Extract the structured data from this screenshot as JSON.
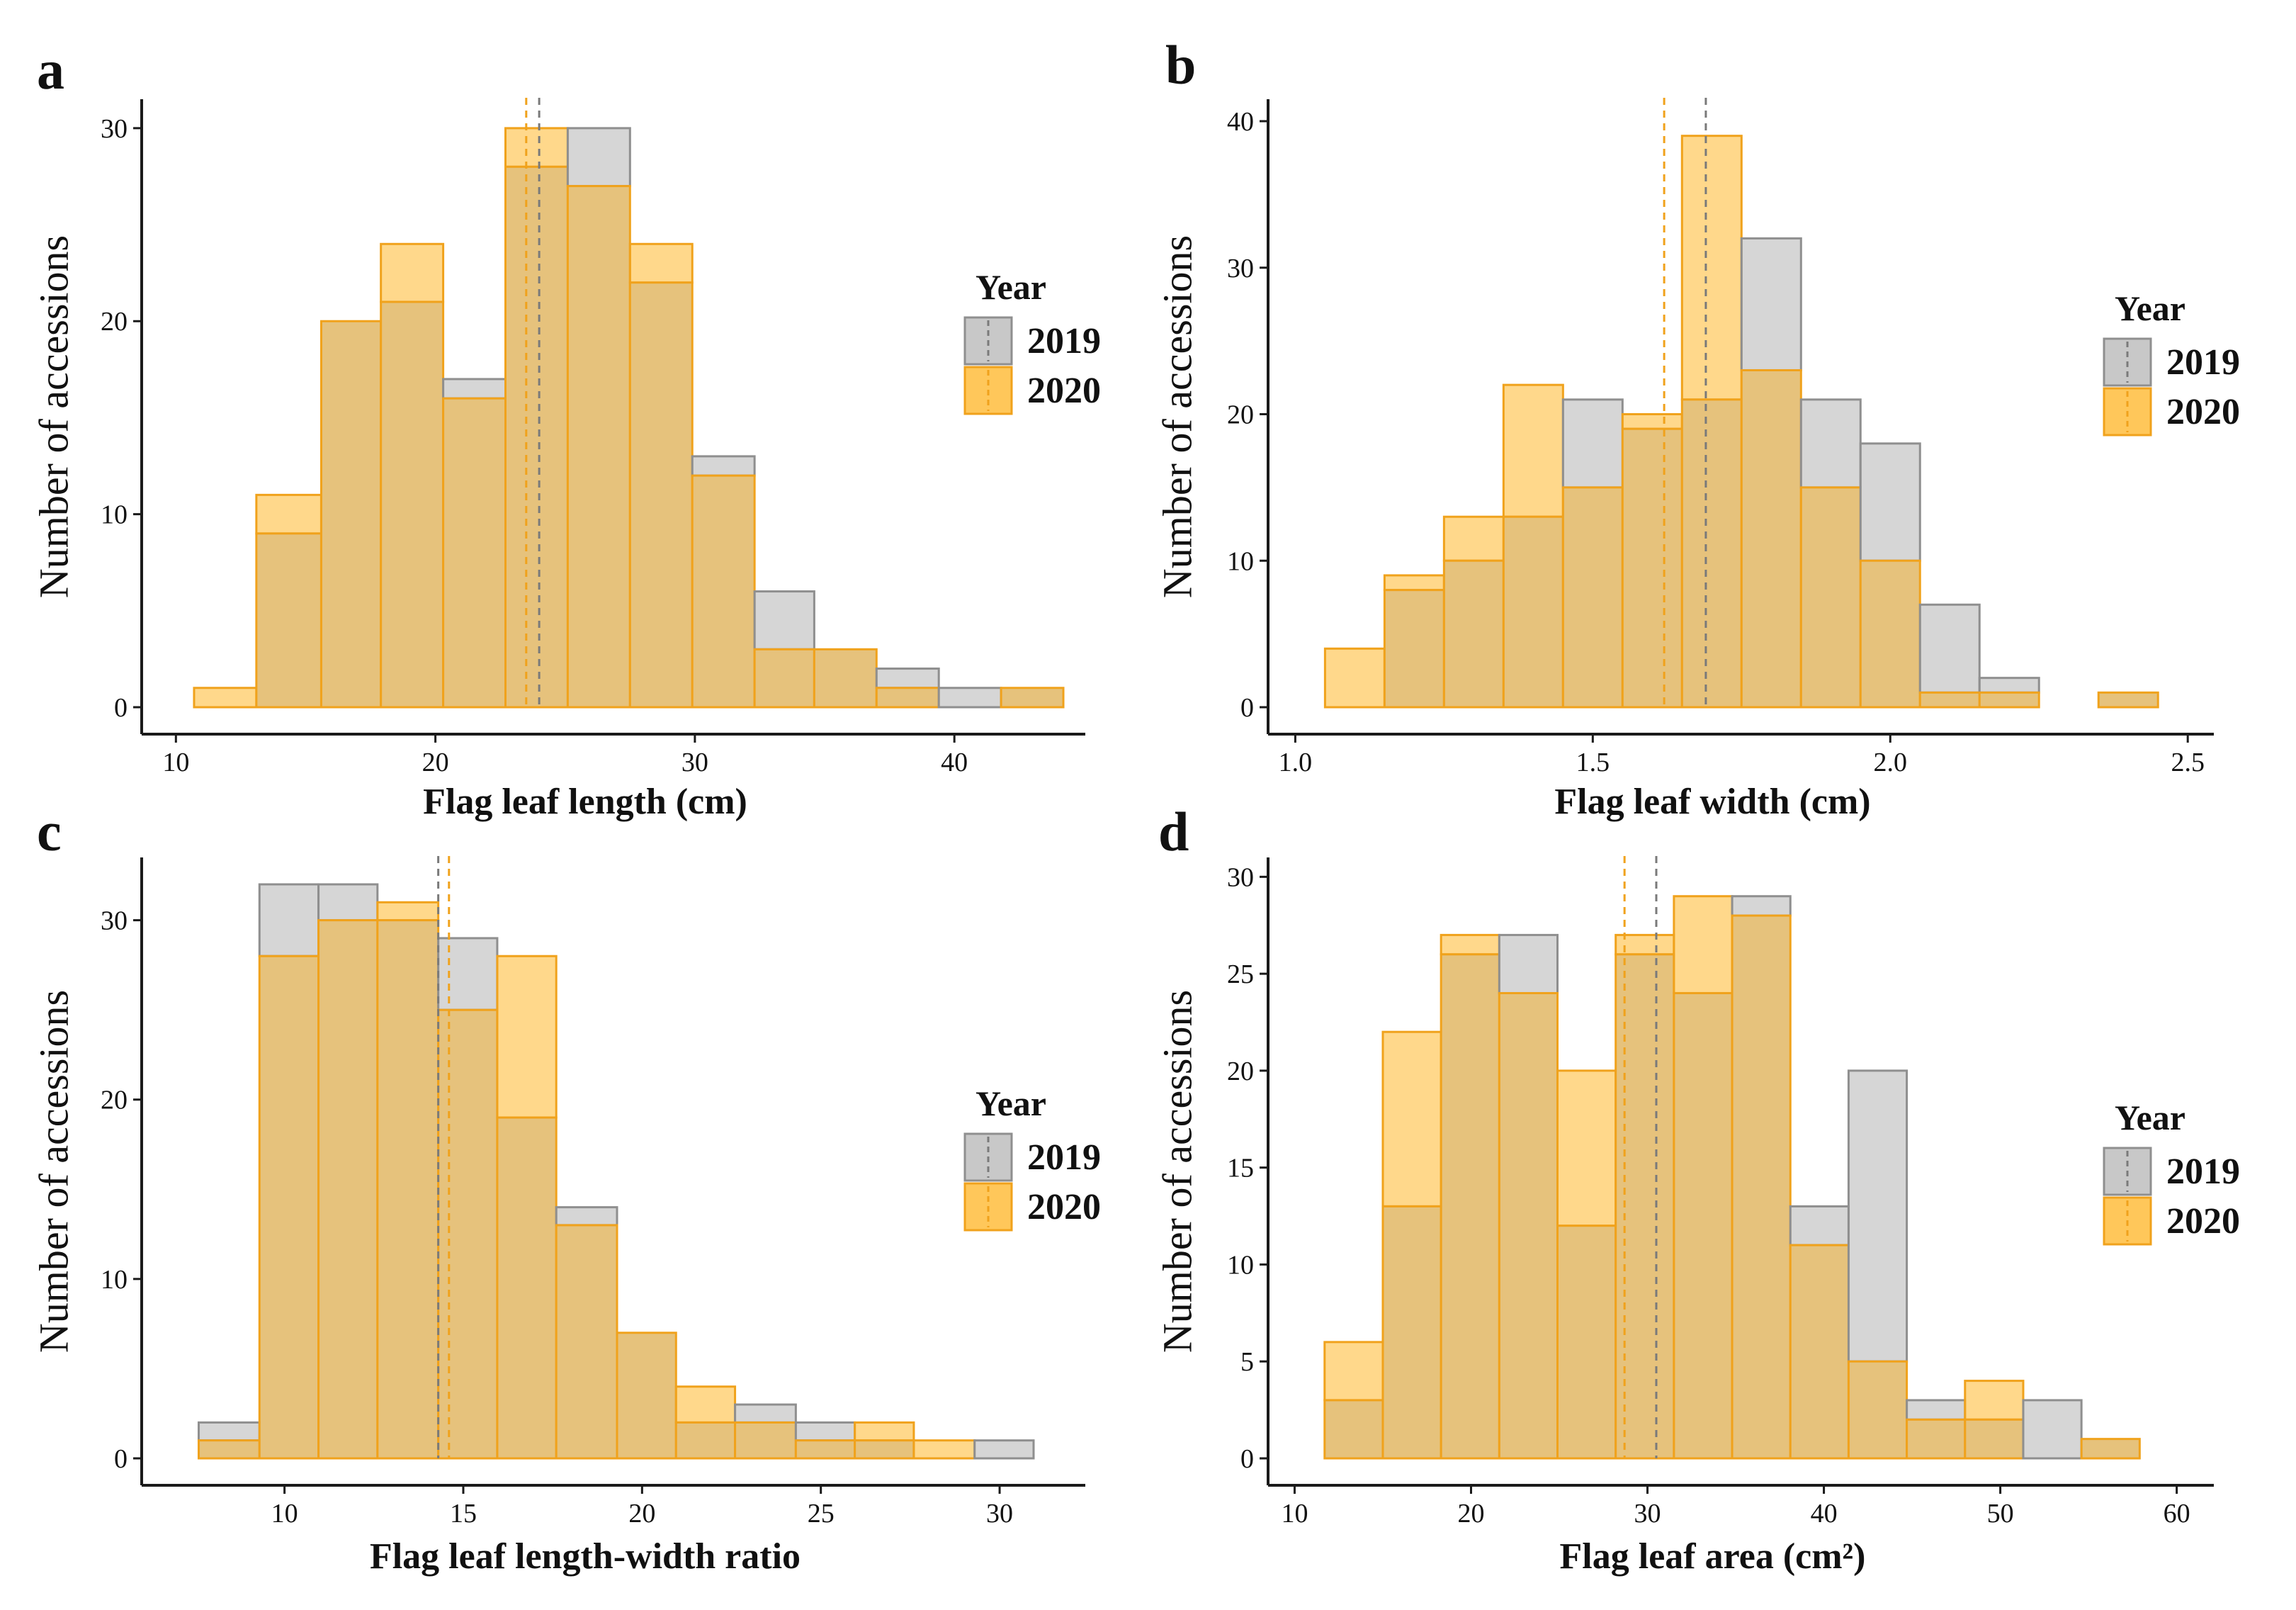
{
  "legend_title": "Year",
  "colors": {
    "y2019_fill": "#c8c8c8",
    "y2019_stroke": "#8f8f8f",
    "y2020_fill": "#ffc75a",
    "y2020_stroke": "#f0a21c",
    "overlap_fill": "#e6c27c",
    "axis": "#1a1a1a",
    "text": "#111111"
  },
  "chart_data": [
    {
      "panel": "a",
      "type": "bar",
      "title": "",
      "xlabel": "Flag leaf length   (cm)",
      "ylabel": "Number of accessions",
      "xlim": [
        9.5,
        44.5
      ],
      "ylim": [
        0,
        31.5
      ],
      "xticks": [
        10,
        20,
        30,
        40
      ],
      "yticks": [
        0,
        10,
        20,
        30
      ],
      "bin_edges": [
        10.7,
        13.1,
        15.6,
        17.9,
        20.3,
        22.7,
        25.1,
        27.5,
        29.9,
        32.3,
        34.6,
        37.0,
        39.4,
        41.8,
        44.2
      ],
      "series": [
        {
          "name": "2019",
          "values": [
            0,
            9,
            20,
            21,
            17,
            28,
            30,
            22,
            13,
            6,
            3,
            2,
            1,
            1
          ]
        },
        {
          "name": "2020",
          "values": [
            1,
            11,
            20,
            24,
            16,
            30,
            27,
            24,
            12,
            3,
            3,
            1,
            0,
            1
          ]
        }
      ],
      "means": {
        "2019": 24.0,
        "2020": 23.5
      },
      "legend": [
        "2019",
        "2020"
      ],
      "legend_position": "right"
    },
    {
      "panel": "b",
      "type": "bar",
      "title": "",
      "xlabel": "Flag leaf width  (cm)",
      "ylabel": "Number of accessions",
      "xlim": [
        0.99,
        2.52
      ],
      "ylim": [
        0,
        41.5
      ],
      "xticks": [
        1.0,
        1.5,
        2.0,
        2.5
      ],
      "yticks": [
        0,
        10,
        20,
        30,
        40
      ],
      "bin_edges": [
        1.05,
        1.15,
        1.25,
        1.35,
        1.45,
        1.55,
        1.65,
        1.75,
        1.85,
        1.95,
        2.05,
        2.15,
        2.25,
        2.35,
        2.45
      ],
      "series": [
        {
          "name": "2019",
          "values": [
            0,
            8,
            10,
            13,
            21,
            19,
            21,
            32,
            21,
            18,
            7,
            2,
            0,
            1
          ]
        },
        {
          "name": "2020",
          "values": [
            4,
            9,
            13,
            22,
            15,
            20,
            39,
            23,
            15,
            10,
            1,
            1,
            0,
            1
          ]
        }
      ],
      "means": {
        "2019": 1.69,
        "2020": 1.62
      },
      "legend": [
        "2019",
        "2020"
      ],
      "legend_position": "right"
    },
    {
      "panel": "c",
      "type": "bar",
      "title": "",
      "xlabel": "Flag leaf length-width ratio",
      "ylabel": "Number of accessions",
      "xlim": [
        6.6,
        32.0
      ],
      "ylim": [
        0,
        33.5
      ],
      "xticks": [
        10,
        15,
        20,
        25,
        30
      ],
      "yticks": [
        0,
        10,
        20,
        30
      ],
      "bin_edges": [
        7.6,
        9.3,
        10.95,
        12.6,
        14.3,
        15.95,
        17.6,
        19.3,
        20.95,
        22.6,
        24.3,
        25.95,
        27.6,
        29.3,
        30.95
      ],
      "series": [
        {
          "name": "2019",
          "values": [
            2,
            32,
            32,
            30,
            29,
            19,
            14,
            7,
            2,
            3,
            2,
            1,
            0,
            1
          ]
        },
        {
          "name": "2020",
          "values": [
            1,
            28,
            30,
            31,
            25,
            28,
            13,
            7,
            4,
            2,
            1,
            2,
            1,
            0
          ]
        }
      ],
      "means": {
        "2019": 14.3,
        "2020": 14.6
      },
      "legend": [
        "2019",
        "2020"
      ],
      "legend_position": "right"
    },
    {
      "panel": "d",
      "type": "bar",
      "title": "",
      "xlabel": "Flag leaf area (cm²)",
      "ylabel": "Number of accessions",
      "xlim": [
        9.7,
        61.3
      ],
      "ylim": [
        0,
        31.0
      ],
      "xticks": [
        10,
        20,
        30,
        40,
        50,
        60
      ],
      "yticks": [
        0,
        5,
        10,
        15,
        20,
        25,
        30
      ],
      "ytick_labels": [
        "0",
        "5",
        "10",
        "15",
        "20",
        "25",
        "30"
      ],
      "bin_edges": [
        11.7,
        15.0,
        18.3,
        21.6,
        24.9,
        28.2,
        31.5,
        34.8,
        38.1,
        41.4,
        44.7,
        48.0,
        51.3,
        54.6,
        57.9
      ],
      "series": [
        {
          "name": "2019",
          "values": [
            3,
            13,
            26,
            27,
            12,
            26,
            24,
            29,
            13,
            20,
            3,
            2,
            3,
            1
          ]
        },
        {
          "name": "2020",
          "values": [
            6,
            22,
            27,
            24,
            20,
            27,
            29,
            28,
            11,
            5,
            2,
            4,
            0,
            1
          ]
        }
      ],
      "means": {
        "2019": 30.5,
        "2020": 28.7
      },
      "legend": [
        "2019",
        "2020"
      ],
      "legend_position": "right"
    }
  ]
}
